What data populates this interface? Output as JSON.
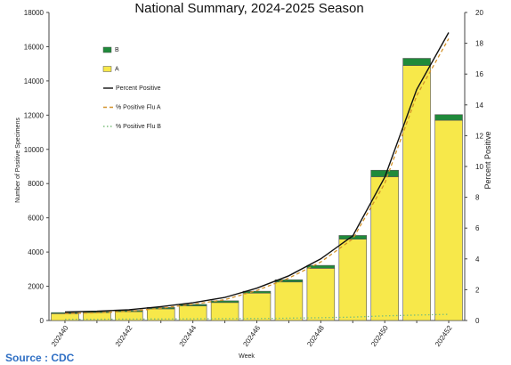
{
  "chart_data": {
    "type": "bar",
    "title": "National Summary, 2024-2025 Season",
    "xlabel": "Week",
    "ylabel": "Number of Positive Specimens",
    "y2label": "Percent Positive",
    "ylim": [
      0,
      18000
    ],
    "y2lim": [
      0,
      20
    ],
    "yticks": [
      "0",
      "2000",
      "4000",
      "6000",
      "8000",
      "10000",
      "12000",
      "14000",
      "16000",
      "18000"
    ],
    "y2ticks": [
      "0",
      "2",
      "4",
      "6",
      "8",
      "10",
      "12",
      "14",
      "16",
      "18",
      "20"
    ],
    "weeks": [
      "202440",
      "202441",
      "202442",
      "202443",
      "202444",
      "202445",
      "202446",
      "202447",
      "202448",
      "202449",
      "202450",
      "202451",
      "202452"
    ],
    "xtick_labels": [
      "202440",
      "",
      "202442",
      "",
      "202444",
      "",
      "202446",
      "",
      "202448",
      "",
      "202450",
      "",
      "202452"
    ],
    "stack_series": [
      {
        "name": "A",
        "color": "#f7e84a",
        "values": [
          400,
          460,
          520,
          680,
          850,
          1050,
          1600,
          2250,
          3050,
          4750,
          8400,
          14900,
          11700
        ]
      },
      {
        "name": "B",
        "color": "#1f8a3a",
        "values": [
          60,
          60,
          70,
          80,
          90,
          100,
          110,
          130,
          170,
          220,
          380,
          420,
          330
        ]
      }
    ],
    "line_series": [
      {
        "name": "Percent Positive",
        "color": "#111111",
        "style": "solid",
        "values": [
          0.55,
          0.6,
          0.7,
          0.9,
          1.15,
          1.5,
          2.1,
          2.9,
          4.0,
          5.5,
          9.3,
          15.0,
          18.7
        ]
      },
      {
        "name": "% Positive Flu A",
        "color": "#d4932a",
        "style": "dashed",
        "values": [
          0.45,
          0.5,
          0.6,
          0.8,
          1.05,
          1.35,
          1.95,
          2.75,
          3.8,
          5.3,
          8.9,
          14.6,
          18.3
        ]
      },
      {
        "name": "% Positive Flu B",
        "color": "#7bbf7b",
        "style": "dotted",
        "values": [
          0.08,
          0.08,
          0.09,
          0.1,
          0.11,
          0.12,
          0.13,
          0.15,
          0.18,
          0.22,
          0.3,
          0.35,
          0.4
        ]
      }
    ],
    "legend_position": "top-left",
    "grid": false
  },
  "footer": {
    "source": "Source : CDC"
  }
}
